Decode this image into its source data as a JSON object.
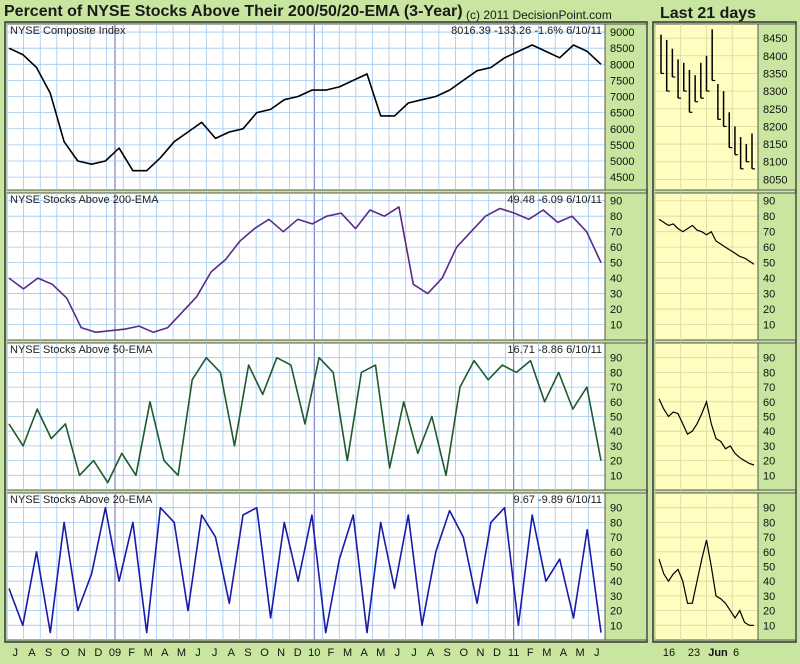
{
  "header": {
    "title": "Percent of NYSE Stocks Above Their 200/50/20-EMA (3-Year)",
    "copyright": "(c) 2011 DecisionPoint.com",
    "side_title": "Last 21 days"
  },
  "colors": {
    "background": "#c8e6a0",
    "panel_bg": "#ffffff",
    "side_panel_bg": "#fffdc0",
    "grid": "#9ec8ee",
    "year_line": "#8080c0",
    "index_line": "#000000",
    "ema200_line": "#5a2a8a",
    "ema50_line": "#1f5a2a",
    "ema20_line": "#1a1aa8"
  },
  "x_axis": {
    "month_labels": [
      "J",
      "A",
      "S",
      "O",
      "N",
      "D",
      "09",
      "F",
      "M",
      "A",
      "M",
      "J",
      "J",
      "A",
      "S",
      "O",
      "N",
      "D",
      "10",
      "F",
      "M",
      "A",
      "M",
      "J",
      "J",
      "A",
      "S",
      "O",
      "N",
      "D",
      "11",
      "F",
      "M",
      "A",
      "M",
      "J"
    ],
    "side_labels": [
      "16",
      "23",
      "Jun",
      "6"
    ]
  },
  "chart_data": [
    {
      "type": "line",
      "title": "NYSE Composite Index",
      "readout": "8016.39  -133.26  -1.6%  6/10/11",
      "series": [
        {
          "values": [
            8500,
            8300,
            7900,
            7100,
            5600,
            5000,
            4900,
            5000,
            5400,
            4700,
            4700,
            5100,
            5600,
            5900,
            6200,
            5700,
            5900,
            6000,
            6500,
            6600,
            6900,
            7000,
            7200,
            7200,
            7300,
            7500,
            7700,
            6400,
            6400,
            6800,
            6900,
            7000,
            7200,
            7500,
            7800,
            7900,
            8200,
            8400,
            8600,
            8400,
            8200,
            8600,
            8400,
            8000
          ]
        }
      ],
      "yticks": [
        4500,
        5000,
        5500,
        6000,
        6500,
        7000,
        7500,
        8000,
        8500,
        9000
      ],
      "ylim": [
        4100,
        9250
      ],
      "side": {
        "yticks": [
          8050,
          8100,
          8150,
          8200,
          8250,
          8300,
          8350,
          8400,
          8450
        ],
        "ylim": [
          8020,
          8490
        ],
        "bars": [
          [
            8460,
            8350
          ],
          [
            8445,
            8300
          ],
          [
            8420,
            8340
          ],
          [
            8390,
            8280
          ],
          [
            8380,
            8300
          ],
          [
            8360,
            8240
          ],
          [
            8345,
            8270
          ],
          [
            8380,
            8280
          ],
          [
            8400,
            8300
          ],
          [
            8475,
            8330
          ],
          [
            8320,
            8220
          ],
          [
            8300,
            8200
          ],
          [
            8240,
            8140
          ],
          [
            8200,
            8120
          ],
          [
            8170,
            8080
          ],
          [
            8150,
            8100
          ],
          [
            8180,
            8080
          ]
        ]
      }
    },
    {
      "type": "line",
      "title": "NYSE Stocks Above 200-EMA",
      "readout": "49.48  -6.09  6/10/11",
      "series": [
        {
          "values": [
            40,
            33,
            40,
            36,
            27,
            8,
            5,
            6,
            7,
            9,
            5,
            8,
            18,
            28,
            44,
            52,
            64,
            72,
            78,
            70,
            78,
            75,
            80,
            82,
            72,
            84,
            80,
            86,
            36,
            30,
            40,
            60,
            70,
            80,
            85,
            82,
            78,
            84,
            76,
            80,
            70,
            50
          ]
        }
      ],
      "yticks": [
        10,
        20,
        30,
        40,
        50,
        60,
        70,
        80,
        90
      ],
      "ylim": [
        0,
        95
      ],
      "side": {
        "yticks": [
          10,
          20,
          30,
          40,
          50,
          60,
          70,
          80,
          90
        ],
        "ylim": [
          0,
          95
        ],
        "values": [
          78,
          76,
          74,
          75,
          72,
          70,
          72,
          74,
          71,
          70,
          68,
          70,
          64,
          62,
          60,
          58,
          56,
          54,
          53,
          51,
          49
        ]
      }
    },
    {
      "type": "line",
      "title": "NYSE Stocks Above 50-EMA",
      "readout": "16.71  -8.86  6/10/11",
      "series": [
        {
          "values": [
            45,
            30,
            55,
            35,
            45,
            10,
            20,
            5,
            25,
            10,
            60,
            20,
            10,
            75,
            90,
            80,
            30,
            85,
            65,
            90,
            85,
            45,
            90,
            80,
            20,
            80,
            85,
            15,
            60,
            25,
            50,
            10,
            70,
            88,
            75,
            85,
            80,
            88,
            60,
            80,
            55,
            70,
            20
          ]
        }
      ],
      "yticks": [
        10,
        20,
        30,
        40,
        50,
        60,
        70,
        80,
        90
      ],
      "ylim": [
        0,
        100
      ],
      "side": {
        "yticks": [
          10,
          20,
          30,
          40,
          50,
          60,
          70,
          80,
          90
        ],
        "ylim": [
          0,
          100
        ],
        "values": [
          62,
          55,
          50,
          53,
          52,
          45,
          38,
          40,
          45,
          52,
          60,
          45,
          35,
          33,
          28,
          30,
          25,
          22,
          20,
          18,
          17
        ]
      }
    },
    {
      "type": "line",
      "title": "NYSE Stocks Above 20-EMA",
      "readout": "9.67  -9.89  6/10/11",
      "series": [
        {
          "values": [
            35,
            10,
            60,
            5,
            80,
            20,
            45,
            90,
            40,
            80,
            5,
            90,
            80,
            20,
            85,
            70,
            25,
            85,
            90,
            15,
            80,
            40,
            85,
            5,
            55,
            85,
            5,
            80,
            35,
            85,
            10,
            60,
            88,
            70,
            25,
            80,
            90,
            10,
            85,
            40,
            55,
            15,
            75,
            5
          ]
        }
      ],
      "yticks": [
        10,
        20,
        30,
        40,
        50,
        60,
        70,
        80,
        90
      ],
      "ylim": [
        0,
        100
      ],
      "side": {
        "yticks": [
          10,
          20,
          30,
          40,
          50,
          60,
          70,
          80,
          90
        ],
        "ylim": [
          0,
          100
        ],
        "values": [
          55,
          45,
          40,
          45,
          48,
          40,
          25,
          25,
          40,
          55,
          68,
          50,
          30,
          28,
          25,
          20,
          15,
          20,
          12,
          10,
          10
        ]
      }
    }
  ]
}
